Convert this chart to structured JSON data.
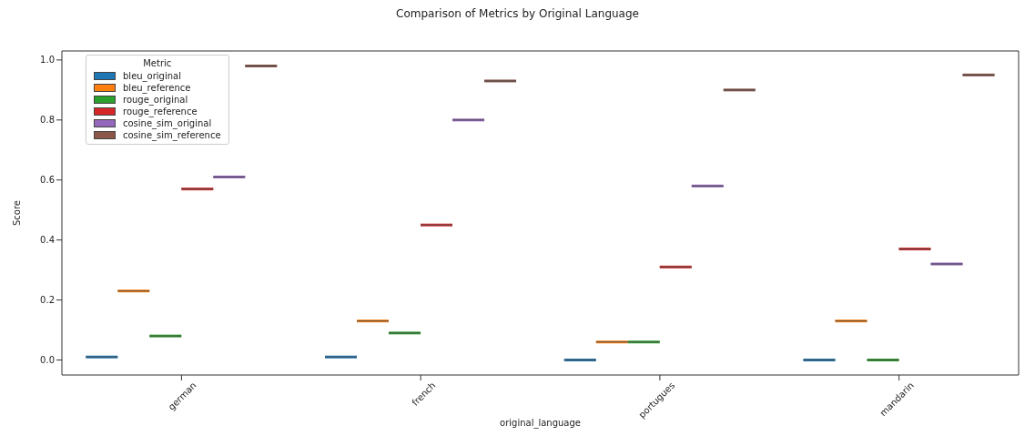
{
  "chart_data": {
    "type": "box",
    "title": "Comparison of Metrics by Original Language",
    "xlabel": "original_language",
    "ylabel": "Score",
    "legend_title": "Metric",
    "legend": "top left",
    "grid": false,
    "categories": [
      "german",
      "french",
      "portugues",
      "mandarin"
    ],
    "ylim": [
      -0.05,
      1.03
    ],
    "yticks": [
      {
        "value": 0,
        "label": "0.0"
      },
      0.2,
      0.4,
      0.6,
      0.8,
      {
        "value": 1,
        "label": "1.0"
      }
    ],
    "series": [
      {
        "name": "bleu_original",
        "color": "#1f77b4",
        "boxes": [
          {
            "low": 0.01,
            "q1": 0.01,
            "median": 0.01,
            "q3": 0.01,
            "high": 0.01
          },
          {
            "low": 0.01,
            "q1": 0.01,
            "median": 0.01,
            "q3": 0.01,
            "high": 0.01
          },
          {
            "low": 0.0,
            "q1": 0.0,
            "median": 0.0,
            "q3": 0.0,
            "high": 0.0
          },
          {
            "low": 0.0,
            "q1": 0.0,
            "median": 0.0,
            "q3": 0.0,
            "high": 0.0
          }
        ]
      },
      {
        "name": "bleu_reference",
        "color": "#ff7f0e",
        "boxes": [
          {
            "low": 0.23,
            "q1": 0.23,
            "median": 0.23,
            "q3": 0.23,
            "high": 0.23
          },
          {
            "low": 0.13,
            "q1": 0.13,
            "median": 0.13,
            "q3": 0.13,
            "high": 0.13
          },
          {
            "low": 0.06,
            "q1": 0.06,
            "median": 0.06,
            "q3": 0.06,
            "high": 0.06
          },
          {
            "low": 0.13,
            "q1": 0.13,
            "median": 0.13,
            "q3": 0.13,
            "high": 0.13
          }
        ]
      },
      {
        "name": "rouge_original",
        "color": "#2ca02c",
        "boxes": [
          {
            "low": 0.08,
            "q1": 0.08,
            "median": 0.08,
            "q3": 0.08,
            "high": 0.08
          },
          {
            "low": 0.09,
            "q1": 0.09,
            "median": 0.09,
            "q3": 0.09,
            "high": 0.09
          },
          {
            "low": 0.06,
            "q1": 0.06,
            "median": 0.06,
            "q3": 0.06,
            "high": 0.06
          },
          {
            "low": 0.0,
            "q1": 0.0,
            "median": 0.0,
            "q3": 0.0,
            "high": 0.0
          }
        ]
      },
      {
        "name": "rouge_reference",
        "color": "#d62728",
        "boxes": [
          {
            "low": 0.57,
            "q1": 0.57,
            "median": 0.57,
            "q3": 0.57,
            "high": 0.57
          },
          {
            "low": 0.45,
            "q1": 0.45,
            "median": 0.45,
            "q3": 0.45,
            "high": 0.45
          },
          {
            "low": 0.31,
            "q1": 0.31,
            "median": 0.31,
            "q3": 0.31,
            "high": 0.31
          },
          {
            "low": 0.37,
            "q1": 0.37,
            "median": 0.37,
            "q3": 0.37,
            "high": 0.37
          }
        ]
      },
      {
        "name": "cosine_sim_original",
        "color": "#9467bd",
        "boxes": [
          {
            "low": 0.61,
            "q1": 0.61,
            "median": 0.61,
            "q3": 0.61,
            "high": 0.61
          },
          {
            "low": 0.8,
            "q1": 0.8,
            "median": 0.8,
            "q3": 0.8,
            "high": 0.8
          },
          {
            "low": 0.58,
            "q1": 0.58,
            "median": 0.58,
            "q3": 0.58,
            "high": 0.58
          },
          {
            "low": 0.32,
            "q1": 0.32,
            "median": 0.32,
            "q3": 0.32,
            "high": 0.32
          }
        ]
      },
      {
        "name": "cosine_sim_reference",
        "color": "#8c564b",
        "boxes": [
          {
            "low": 0.98,
            "q1": 0.98,
            "median": 0.98,
            "q3": 0.98,
            "high": 0.98
          },
          {
            "low": 0.93,
            "q1": 0.93,
            "median": 0.93,
            "q3": 0.93,
            "high": 0.93
          },
          {
            "low": 0.9,
            "q1": 0.9,
            "median": 0.9,
            "q3": 0.9,
            "high": 0.9
          },
          {
            "low": 0.95,
            "q1": 0.95,
            "median": 0.95,
            "q3": 0.95,
            "high": 0.95
          }
        ]
      }
    ]
  }
}
